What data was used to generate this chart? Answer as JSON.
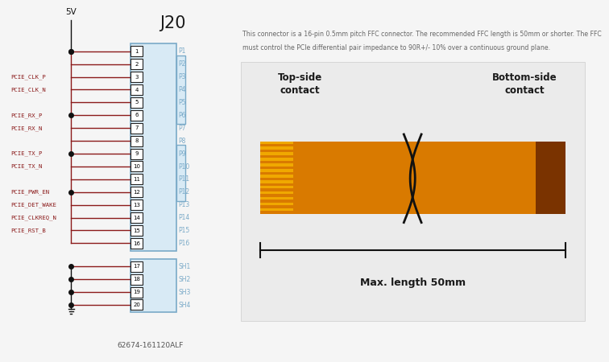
{
  "bg_color": "#f5f5f5",
  "left_bg": "#ffffff",
  "title": "J20",
  "part_number": "62674-161120ALF",
  "signal_color": "#8b1a1a",
  "connector_border": "#7aaac8",
  "connector_fill": "#d8eaf5",
  "pin_labels": [
    "P1",
    "P2",
    "P3",
    "P4",
    "P5",
    "P6",
    "P7",
    "P8",
    "P9",
    "P10",
    "P11",
    "P12",
    "P13",
    "P14",
    "P15",
    "P16",
    "SH1",
    "SH2",
    "SH3",
    "SH4"
  ],
  "signals_left": {
    "3": "PCIE_CLK_P",
    "4": "PCIE_CLK_N",
    "6": "PCIE_RX_P",
    "7": "PCIE_RX_N",
    "9": "PCIE_TX_P",
    "10": "PCIE_TX_N",
    "12": "PCIE_PWR_EN",
    "13": "PCIE_DET_WAKE",
    "14": "PCIE_CLKREQ_N",
    "15": "PCIE_RST_B"
  },
  "ffc_line1": "This connector is a 16-pin 0.5mm pitch FFC connector. The recommended FFC length is 50mm or shorter. The FFC",
  "ffc_line2": "must control the PCIe differential pair impedance to 90R+/- 10% over a continuous ground plane.",
  "top_side_label": "Top-side\ncontact",
  "bottom_side_label": "Bottom-side\ncontact",
  "max_length_label": "Max. length 50mm",
  "cable_orange": "#d97a00",
  "cable_stripe_light": "#f0a800",
  "cable_brown": "#7a3300",
  "text_dark": "#1a1a1a",
  "text_gray": "#666666",
  "diag_bg": "#ebebeb"
}
